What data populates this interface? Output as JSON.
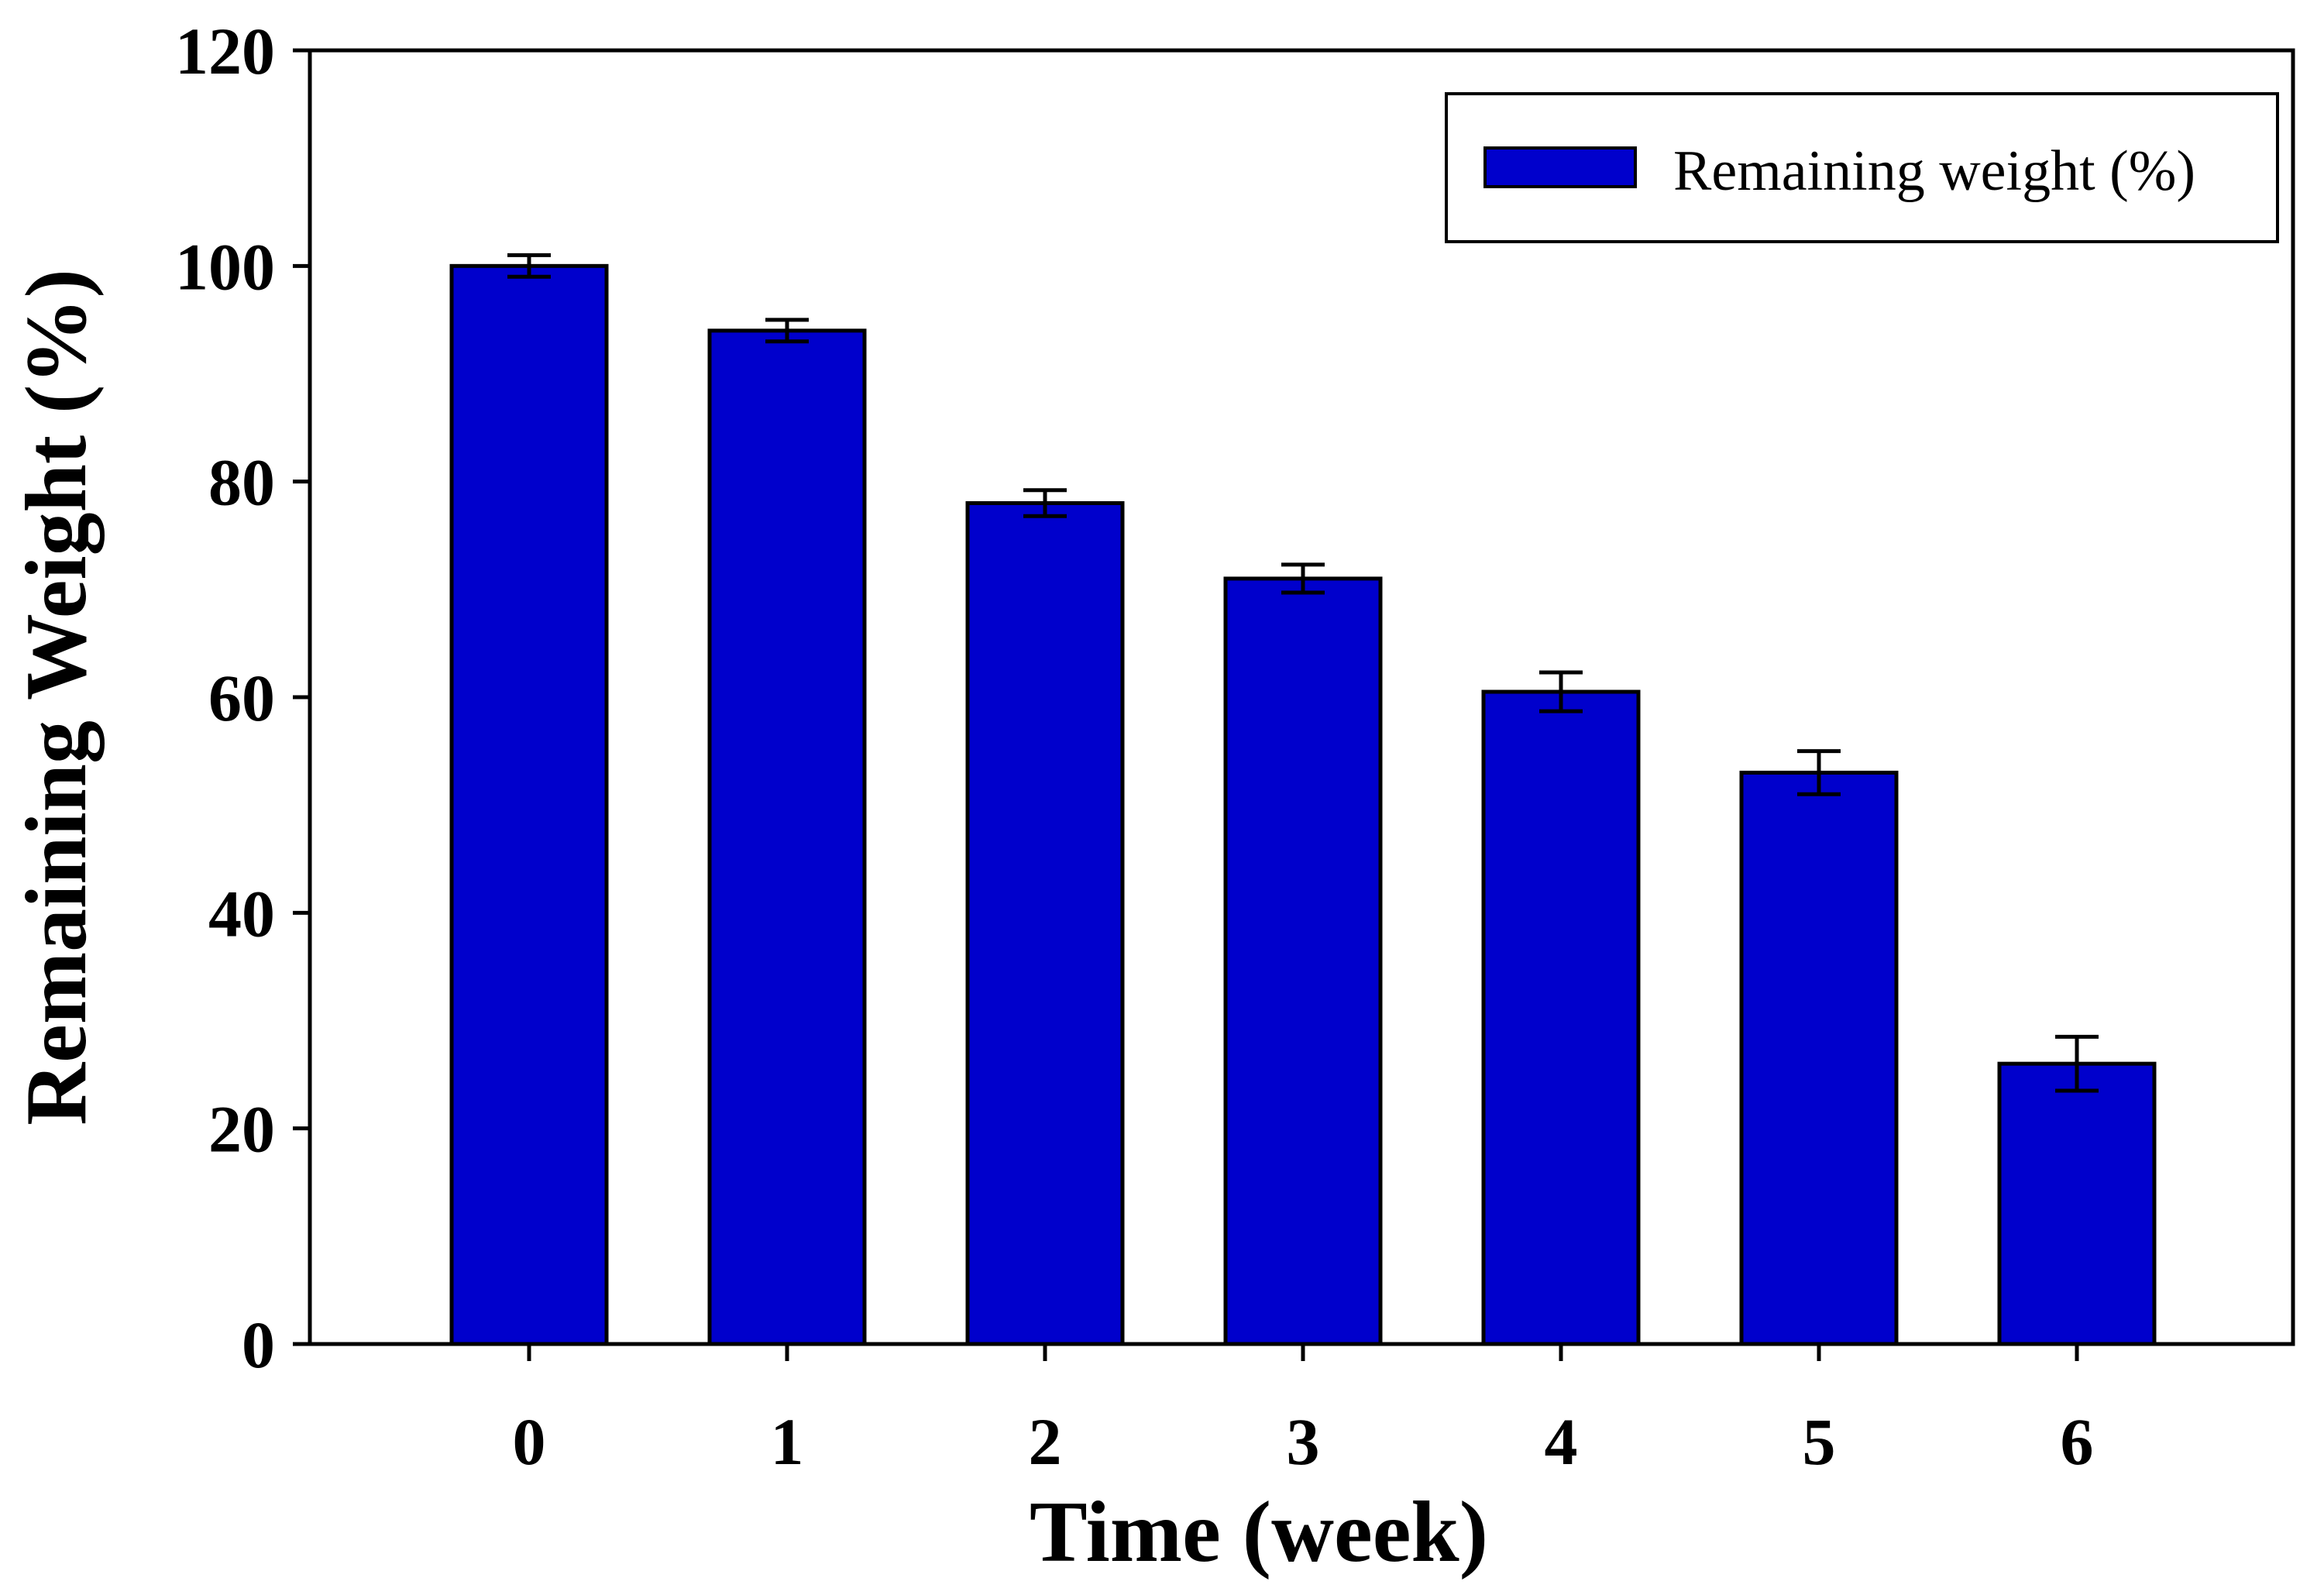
{
  "chart_data": {
    "type": "bar",
    "categories": [
      "0",
      "1",
      "2",
      "3",
      "4",
      "5",
      "6"
    ],
    "series": [
      {
        "name": "Remaining weight (%)",
        "values": [
          100,
          94,
          78,
          71,
          60.5,
          53,
          26
        ],
        "error": [
          1,
          1,
          1.2,
          1.3,
          1.8,
          2,
          2.5
        ]
      }
    ],
    "title": "",
    "xlabel": "Time (week)",
    "ylabel": "Remaining Weight (%)",
    "ylim": [
      0,
      120
    ],
    "yticks": [
      "0",
      "20",
      "40",
      "60",
      "80",
      "100",
      "120"
    ],
    "grid": false,
    "legend_position": "top-right",
    "bar_color": "#0000CC"
  }
}
